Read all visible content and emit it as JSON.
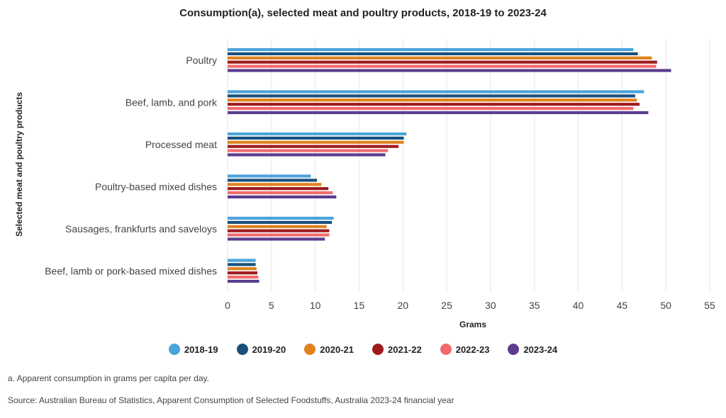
{
  "chart_data": {
    "type": "bar",
    "orientation": "horizontal",
    "title": "Consumption(a), selected meat and poultry products, 2018-19 to 2023-24",
    "xlabel": "Grams",
    "ylabel": "Selected meat and poultry products",
    "xlim": [
      0,
      55
    ],
    "xticks": [
      0,
      5,
      10,
      15,
      20,
      25,
      30,
      35,
      40,
      45,
      50,
      55
    ],
    "grid": "vertical",
    "legend_position": "bottom",
    "categories": [
      "Poultry",
      "Beef, lamb, and pork",
      "Processed meat",
      "Poultry-based mixed dishes",
      "Sausages, frankfurts and saveloys",
      "Beef, lamb or pork-based mixed dishes"
    ],
    "series": [
      {
        "name": "2018-19",
        "color": "#4aa3d9",
        "values": [
          46.3,
          47.5,
          20.4,
          9.5,
          12.1,
          3.2
        ]
      },
      {
        "name": "2019-20",
        "color": "#1b4f7a",
        "values": [
          46.8,
          46.5,
          20.1,
          10.2,
          11.9,
          3.2
        ]
      },
      {
        "name": "2020-21",
        "color": "#e0821e",
        "values": [
          48.4,
          46.7,
          20.1,
          10.7,
          11.3,
          3.3
        ]
      },
      {
        "name": "2021-22",
        "color": "#9e1b1e",
        "values": [
          49.0,
          47.0,
          19.5,
          11.5,
          11.6,
          3.4
        ]
      },
      {
        "name": "2022-23",
        "color": "#f26b6b",
        "values": [
          48.9,
          46.3,
          18.3,
          12.0,
          11.6,
          3.5
        ]
      },
      {
        "name": "2023-24",
        "color": "#5b3d8f",
        "values": [
          50.6,
          48.0,
          18.0,
          12.4,
          11.1,
          3.6
        ]
      }
    ]
  },
  "footnote": "a. Apparent consumption in grams per capita per day.",
  "source": "Source: Australian Bureau of Statistics, Apparent Consumption of Selected Foodstuffs, Australia 2023-24 financial year"
}
